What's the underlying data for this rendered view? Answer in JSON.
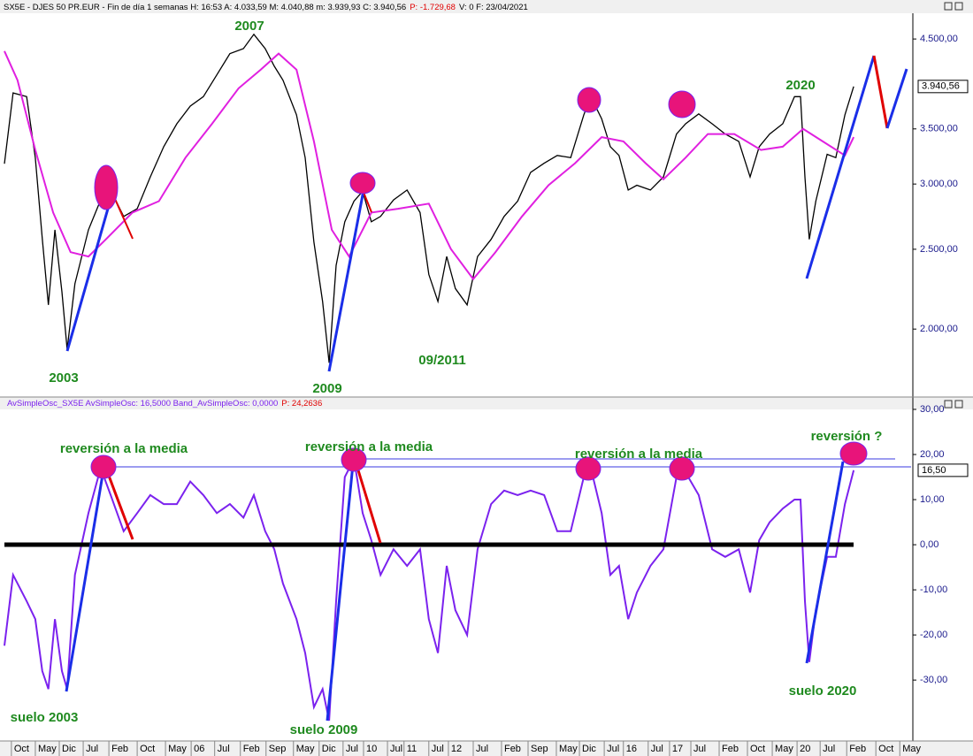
{
  "chart_data": [
    {
      "type": "line",
      "log_scale": true,
      "header": [
        "SX5E - DJES 50 PR.EUR - Fin de día 1 semanas H: 16:53 A: 4.033,59 M: 4.040,88 m: 3.939,93 C: 3.940,56",
        "P: -1.729,68",
        "V: 0 F: 23/04/2021"
      ],
      "xlim": [
        2001.78,
        2022.65
      ],
      "ylim": [
        1650,
        4800
      ],
      "yticks": [
        {
          "value": 2000,
          "label": "2.000,00"
        },
        {
          "value": 2500,
          "label": "2.500,00"
        },
        {
          "value": 3000,
          "label": "3.000,00"
        },
        {
          "value": 3500,
          "label": "3.500,00"
        },
        {
          "value": 4500,
          "label": "4.500,00"
        }
      ],
      "last_value": {
        "value": 3940.56,
        "label": "3.940,56"
      },
      "x": [
        2001.78,
        2001.98,
        2002.29,
        2002.49,
        2002.65,
        2002.79,
        2002.94,
        2003.1,
        2003.22,
        2003.4,
        2003.71,
        2003.99,
        2004.22,
        2004.52,
        2004.83,
        2005.13,
        2005.44,
        2005.74,
        2006.05,
        2006.35,
        2006.66,
        2006.96,
        2007.27,
        2007.51,
        2007.77,
        2007.98,
        2008.18,
        2008.49,
        2008.69,
        2008.89,
        2009.09,
        2009.24,
        2009.4,
        2009.6,
        2009.81,
        2010.01,
        2010.21,
        2010.42,
        2010.72,
        2011.03,
        2011.33,
        2011.53,
        2011.74,
        2011.94,
        2012.14,
        2012.41,
        2012.65,
        2012.96,
        2013.26,
        2013.57,
        2013.87,
        2014.18,
        2014.48,
        2014.79,
        2015.09,
        2015.25,
        2015.5,
        2015.7,
        2015.9,
        2016.11,
        2016.31,
        2016.62,
        2016.92,
        2017.22,
        2017.43,
        2017.73,
        2018.04,
        2018.34,
        2018.65,
        2018.91,
        2019.12,
        2019.36,
        2019.66,
        2019.93,
        2020.07,
        2020.17,
        2020.27,
        2020.42,
        2020.68,
        2020.88,
        2021.09,
        2021.29
      ],
      "series": [
        {
          "name": "SX5E",
          "color": "#000000",
          "values": [
            3175,
            3870,
            3830,
            3230,
            2575,
            2140,
            2640,
            2220,
            1890,
            2270,
            2640,
            2870,
            2950,
            2740,
            2800,
            3060,
            3330,
            3550,
            3730,
            3830,
            4070,
            4320,
            4380,
            4560,
            4380,
            4170,
            4010,
            3640,
            3230,
            2550,
            2160,
            1820,
            2390,
            2700,
            2860,
            2940,
            2700,
            2740,
            2870,
            2950,
            2770,
            2330,
            2160,
            2450,
            2240,
            2140,
            2450,
            2570,
            2740,
            2860,
            3100,
            3180,
            3250,
            3230,
            3640,
            3830,
            3600,
            3330,
            3250,
            2950,
            2990,
            2950,
            3060,
            3450,
            3550,
            3650,
            3550,
            3450,
            3380,
            3060,
            3330,
            3450,
            3550,
            3830,
            3830,
            3060,
            2570,
            2860,
            3260,
            3230,
            3640,
            3940.56
          ]
        },
        {
          "name": "AvSimple",
          "color": "#e020e0",
          "x": [
            2001.78,
            2002.08,
            2002.49,
            2002.9,
            2003.3,
            2003.71,
            2004.11,
            2004.72,
            2005.33,
            2005.94,
            2006.55,
            2007.16,
            2007.67,
            2008.08,
            2008.49,
            2008.89,
            2009.3,
            2009.7,
            2010.21,
            2010.82,
            2011.53,
            2012.04,
            2012.55,
            2013.06,
            2013.67,
            2014.28,
            2014.89,
            2015.5,
            2016.0,
            2016.51,
            2016.92,
            2017.43,
            2017.94,
            2018.55,
            2019.16,
            2019.66,
            2020.13,
            2020.58,
            2021.09,
            2021.29
          ],
          "values": [
            4350,
            4010,
            3300,
            2770,
            2480,
            2450,
            2570,
            2770,
            2860,
            3230,
            3550,
            3920,
            4130,
            4320,
            4130,
            3380,
            2640,
            2450,
            2770,
            2800,
            2840,
            2500,
            2300,
            2480,
            2740,
            2990,
            3180,
            3420,
            3380,
            3180,
            3040,
            3230,
            3450,
            3450,
            3300,
            3330,
            3500,
            3380,
            3250,
            3420
          ]
        }
      ],
      "annotations": [
        "2007",
        "2003",
        "2009",
        "09/2011",
        "2020"
      ]
    },
    {
      "type": "line",
      "header": [
        "AvSimpleOsc_SX5E AvSimpleOsc: 16,5000 Band_AvSimpleOsc: 0,0000",
        "P: 24,2636"
      ],
      "xlim": [
        2001.78,
        2022.65
      ],
      "ylim": [
        -43.5,
        30
      ],
      "yticks": [
        {
          "value": -30,
          "label": "-30,00"
        },
        {
          "value": -20,
          "label": "-20,00"
        },
        {
          "value": -10,
          "label": "-10,00"
        },
        {
          "value": 0,
          "label": "0,00"
        },
        {
          "value": 10,
          "label": "10,00"
        },
        {
          "value": 20,
          "label": "20,00"
        },
        {
          "value": 30,
          "label": "30,00"
        }
      ],
      "last_value": {
        "value": 16.5,
        "label": "16,50"
      },
      "xticks": [
        {
          "value": 2001.94,
          "label": "Oct"
        },
        {
          "value": 2002.49,
          "label": "May"
        },
        {
          "value": 2003.04,
          "label": "Dic"
        },
        {
          "value": 2003.59,
          "label": "Jul"
        },
        {
          "value": 2004.18,
          "label": "Feb"
        },
        {
          "value": 2004.83,
          "label": "Oct"
        },
        {
          "value": 2005.48,
          "label": "May"
        },
        {
          "value": 2006.07,
          "label": "06"
        },
        {
          "value": 2006.61,
          "label": "Jul"
        },
        {
          "value": 2007.2,
          "label": "Feb"
        },
        {
          "value": 2007.79,
          "label": "Sep"
        },
        {
          "value": 2008.42,
          "label": "May"
        },
        {
          "value": 2009.01,
          "label": "Dic"
        },
        {
          "value": 2009.56,
          "label": "Jul"
        },
        {
          "value": 2010.03,
          "label": "10"
        },
        {
          "value": 2010.58,
          "label": "Jul"
        },
        {
          "value": 2010.96,
          "label": "11"
        },
        {
          "value": 2011.53,
          "label": "Jul"
        },
        {
          "value": 2011.98,
          "label": "12"
        },
        {
          "value": 2012.55,
          "label": "Jul"
        },
        {
          "value": 2013.2,
          "label": "Feb"
        },
        {
          "value": 2013.81,
          "label": "Sep"
        },
        {
          "value": 2014.46,
          "label": "May"
        },
        {
          "value": 2014.99,
          "label": "Dic"
        },
        {
          "value": 2015.56,
          "label": "Jul"
        },
        {
          "value": 2016.0,
          "label": "16"
        },
        {
          "value": 2016.57,
          "label": "Jul"
        },
        {
          "value": 2017.06,
          "label": "17"
        },
        {
          "value": 2017.55,
          "label": "Jul"
        },
        {
          "value": 2018.2,
          "label": "Feb"
        },
        {
          "value": 2018.85,
          "label": "Oct"
        },
        {
          "value": 2019.42,
          "label": "May"
        },
        {
          "value": 2019.99,
          "label": "20"
        },
        {
          "value": 2020.52,
          "label": "Jul"
        },
        {
          "value": 2021.13,
          "label": "Feb"
        },
        {
          "value": 2021.8,
          "label": "Oct"
        },
        {
          "value": 2022.35,
          "label": "May"
        }
      ],
      "x": [
        2001.78,
        2001.98,
        2002.29,
        2002.49,
        2002.65,
        2002.79,
        2002.94,
        2003.1,
        2003.22,
        2003.4,
        2003.71,
        2003.99,
        2004.22,
        2004.52,
        2004.83,
        2005.13,
        2005.44,
        2005.74,
        2006.05,
        2006.35,
        2006.66,
        2006.96,
        2007.27,
        2007.51,
        2007.77,
        2007.98,
        2008.18,
        2008.49,
        2008.69,
        2008.89,
        2009.09,
        2009.24,
        2009.4,
        2009.6,
        2009.81,
        2010.01,
        2010.21,
        2010.42,
        2010.72,
        2011.03,
        2011.33,
        2011.53,
        2011.74,
        2011.94,
        2012.14,
        2012.41,
        2012.65,
        2012.96,
        2013.26,
        2013.57,
        2013.87,
        2014.18,
        2014.48,
        2014.79,
        2015.09,
        2015.25,
        2015.5,
        2015.7,
        2015.9,
        2016.11,
        2016.31,
        2016.62,
        2016.92,
        2017.22,
        2017.43,
        2017.73,
        2018.04,
        2018.34,
        2018.65,
        2018.91,
        2019.12,
        2019.36,
        2019.66,
        2019.93,
        2020.07,
        2020.17,
        2020.27,
        2020.42,
        2020.68,
        2020.88,
        2021.09,
        2021.29
      ],
      "series": [
        {
          "name": "AvSimpleOsc_SX5E",
          "color": "#7b22ee",
          "values": [
            -22.4,
            -6.7,
            -12.5,
            -16.5,
            -28,
            -32,
            -16.5,
            -28,
            -32,
            -6.7,
            7,
            17,
            11,
            3,
            7,
            11,
            9,
            9,
            14,
            11,
            7,
            9,
            6,
            11,
            3,
            -1,
            -8.6,
            -16.5,
            -24,
            -36,
            -32,
            -39,
            -12.5,
            15,
            19,
            7,
            1,
            -6.7,
            -1,
            -4.7,
            -1,
            -16.5,
            -24,
            -4.7,
            -14.5,
            -20,
            -1,
            9,
            12,
            11,
            12,
            11,
            3,
            3,
            15,
            17,
            7,
            -6.7,
            -4.7,
            -16.5,
            -10.6,
            -4.7,
            -1,
            15,
            16,
            11,
            -1,
            -2.7,
            -1,
            -10.6,
            1,
            5,
            8,
            10,
            10,
            -12.5,
            -26,
            -14.5,
            -2.7,
            -2.7,
            9,
            16.5
          ]
        }
      ],
      "annotations": [
        "reversión a la media",
        "reversión a la media",
        "reversión a la media",
        "reversión ?",
        "suelo 2003",
        "suelo 2009",
        "suelo 2020"
      ]
    }
  ]
}
